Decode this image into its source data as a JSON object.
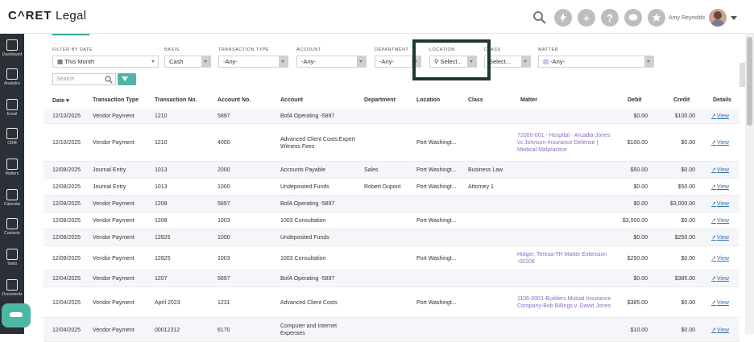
{
  "app": {
    "logo_prefix": "C^RET",
    "logo_suffix": " Legal",
    "user_name": "Amy Reynolds"
  },
  "topbar": {
    "icons": [
      "search-icon",
      "lightning-icon",
      "plus-icon",
      "help-icon",
      "chat-icon",
      "star-icon"
    ],
    "help": "?",
    "plus": "+"
  },
  "sidebar": [
    {
      "label": "Dashboard",
      "icon": "dashboard-icon"
    },
    {
      "label": "Analytics",
      "icon": "analytics-icon"
    },
    {
      "label": "Email",
      "icon": "email-icon"
    },
    {
      "label": "CRM",
      "icon": "crm-icon"
    },
    {
      "label": "Matters",
      "icon": "matters-icon"
    },
    {
      "label": "Calendar",
      "icon": "calendar-icon"
    },
    {
      "label": "Contacts",
      "icon": "contacts-icon"
    },
    {
      "label": "Tasks",
      "icon": "tasks-icon"
    },
    {
      "label": "Documents",
      "icon": "documents-icon"
    }
  ],
  "filters": {
    "date": {
      "label": "FILTER BY DATE",
      "value": "This Month"
    },
    "basis": {
      "label": "BASIS",
      "value": "Cash"
    },
    "transaction_type": {
      "label": "TRANSACTION TYPE",
      "value": "-Any-"
    },
    "account": {
      "label": "ACCOUNT",
      "value": "-Any-"
    },
    "department": {
      "label": "DEPARTMENT",
      "value": "-Any-"
    },
    "location": {
      "label": "LOCATION",
      "value": "Select..."
    },
    "class": {
      "label": "CLASS",
      "value": "Select..."
    },
    "matter": {
      "label": "MATTER",
      "value": "-Any-"
    },
    "search_placeholder": "Search"
  },
  "table": {
    "headers": {
      "date": "Date",
      "type": "Transaction Type",
      "txn": "Transaction No.",
      "acct_no": "Account No.",
      "account": "Account",
      "department": "Department",
      "location": "Location",
      "class": "Class",
      "matter": "Matter",
      "debit": "Debit",
      "credit": "Credit",
      "details": "Details"
    },
    "view_label": "View",
    "rows": [
      {
        "date": "12/10/2025",
        "type": "Vendor Payment",
        "txn": "1210",
        "acct_no": "5897",
        "account": "BofA Operating -5897",
        "department": "",
        "location": "",
        "class": "",
        "matter": "",
        "debit": "$0.00",
        "credit": "$100.00"
      },
      {
        "date": "12/10/2025",
        "type": "Vendor Payment",
        "txn": "1210",
        "acct_no": "4000",
        "account": "Advanced Client Costs:Expert Witness Fees",
        "department": "",
        "location": "Port Washingt...",
        "class": "",
        "matter": "72000-001 - Hospital - Arcadia-Jones vs Johnson-Insurance Defense | Medical Malpractice",
        "debit": "$100.00",
        "credit": "$0.00"
      },
      {
        "date": "12/08/2025",
        "type": "Journal Entry",
        "txn": "1013",
        "acct_no": "2000",
        "account": "Accounts Payable",
        "department": "Sales",
        "location": "Port Washingt...",
        "class": "Business Law",
        "matter": "",
        "debit": "$50.00",
        "credit": "$0.00"
      },
      {
        "date": "12/08/2025",
        "type": "Journal Entry",
        "txn": "1013",
        "acct_no": "1000",
        "account": "Undeposited Funds",
        "department": "Robert Dupont",
        "location": "Port Washingt...",
        "class": "Attorney 1",
        "matter": "",
        "debit": "$0.00",
        "credit": "$50.00"
      },
      {
        "date": "12/08/2025",
        "type": "Vendor Payment",
        "txn": "1208",
        "acct_no": "5897",
        "account": "BofA Operating -5897",
        "department": "",
        "location": "",
        "class": "",
        "matter": "",
        "debit": "$0.00",
        "credit": "$3,000.00"
      },
      {
        "date": "12/08/2025",
        "type": "Vendor Payment",
        "txn": "1208",
        "acct_no": "1003",
        "account": "1003 Consultation",
        "department": "",
        "location": "Port Washingt...",
        "class": "",
        "matter": "",
        "debit": "$3,000.00",
        "credit": "$0.00"
      },
      {
        "date": "12/08/2025",
        "type": "Vendor Payment",
        "txn": "12825",
        "acct_no": "1000",
        "account": "Undeposited Funds",
        "department": "",
        "location": "",
        "class": "",
        "matter": "",
        "debit": "$0.00",
        "credit": "$250.00"
      },
      {
        "date": "12/08/2025",
        "type": "Vendor Payment",
        "txn": "12825",
        "acct_no": "1003",
        "account": "1003 Consultation",
        "department": "",
        "location": "Port Washingt...",
        "class": "",
        "matter": "Holger, Teresa-TH Matter Extension -00208",
        "debit": "$250.00",
        "credit": "$0.00"
      },
      {
        "date": "12/04/2025",
        "type": "Vendor Payment",
        "txn": "1207",
        "acct_no": "5897",
        "account": "BofA Operating -5897",
        "department": "",
        "location": "",
        "class": "",
        "matter": "",
        "debit": "$0.00",
        "credit": "$385.00"
      },
      {
        "date": "12/04/2025",
        "type": "Vendor Payment",
        "txn": "April 2023",
        "acct_no": "1231",
        "account": "Advanced Client Costs",
        "department": "",
        "location": "Port Washingt...",
        "class": "",
        "matter": "1106-0001-Builders Mutual Insurance Company-Bob Billings v. David Jones",
        "debit": "$385.00",
        "credit": "$0.00"
      },
      {
        "date": "12/04/2025",
        "type": "Vendor Payment",
        "txn": "00012312",
        "acct_no": "6170",
        "account": "Computer and Internet Expenses",
        "department": "",
        "location": "",
        "class": "",
        "matter": "",
        "debit": "$10.00",
        "credit": "$0.00"
      }
    ]
  }
}
